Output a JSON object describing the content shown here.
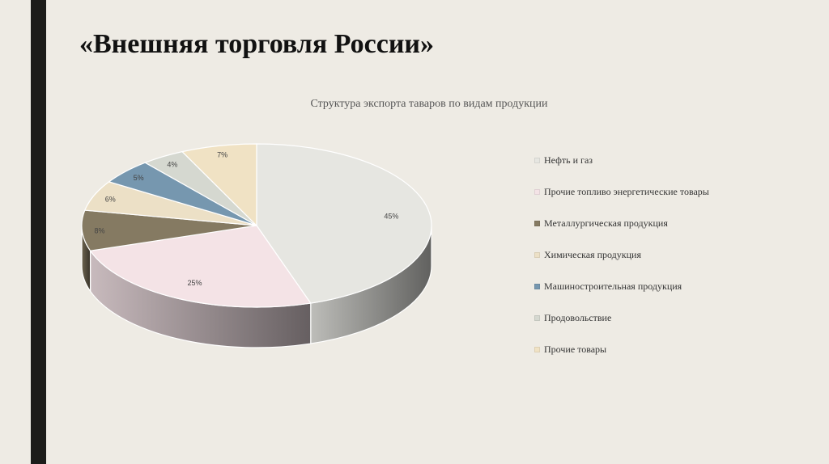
{
  "slide": {
    "title": "«Внешняя торговля России»"
  },
  "colors": {
    "background": "#eeebe4",
    "left_bar": "#1c1c1a"
  },
  "chart_data": {
    "type": "pie",
    "style": "3d",
    "title": "Структура экспорта таваров по видам продукции",
    "legend_position": "right",
    "slices": [
      {
        "name": "Нефть и газ",
        "value": 45,
        "label": "45%",
        "color": "#e6e6e1"
      },
      {
        "name": "Прочие топливо энергетические товары",
        "value": 25,
        "label": "25%",
        "color": "#f4e3e6"
      },
      {
        "name": "Металлургическая продукция",
        "value": 8,
        "label": "8%",
        "color": "#857a62"
      },
      {
        "name": "Химическая продукция",
        "value": 6,
        "label": "6%",
        "color": "#ece0c6"
      },
      {
        "name": "Машиностроительная продукция",
        "value": 5,
        "label": "5%",
        "color": "#7697af"
      },
      {
        "name": "Продовольствие",
        "value": 4,
        "label": "4%",
        "color": "#d5d8d0"
      },
      {
        "name": "Прочие товары",
        "value": 7,
        "label": "7%",
        "color": "#f0e2c4"
      }
    ]
  }
}
